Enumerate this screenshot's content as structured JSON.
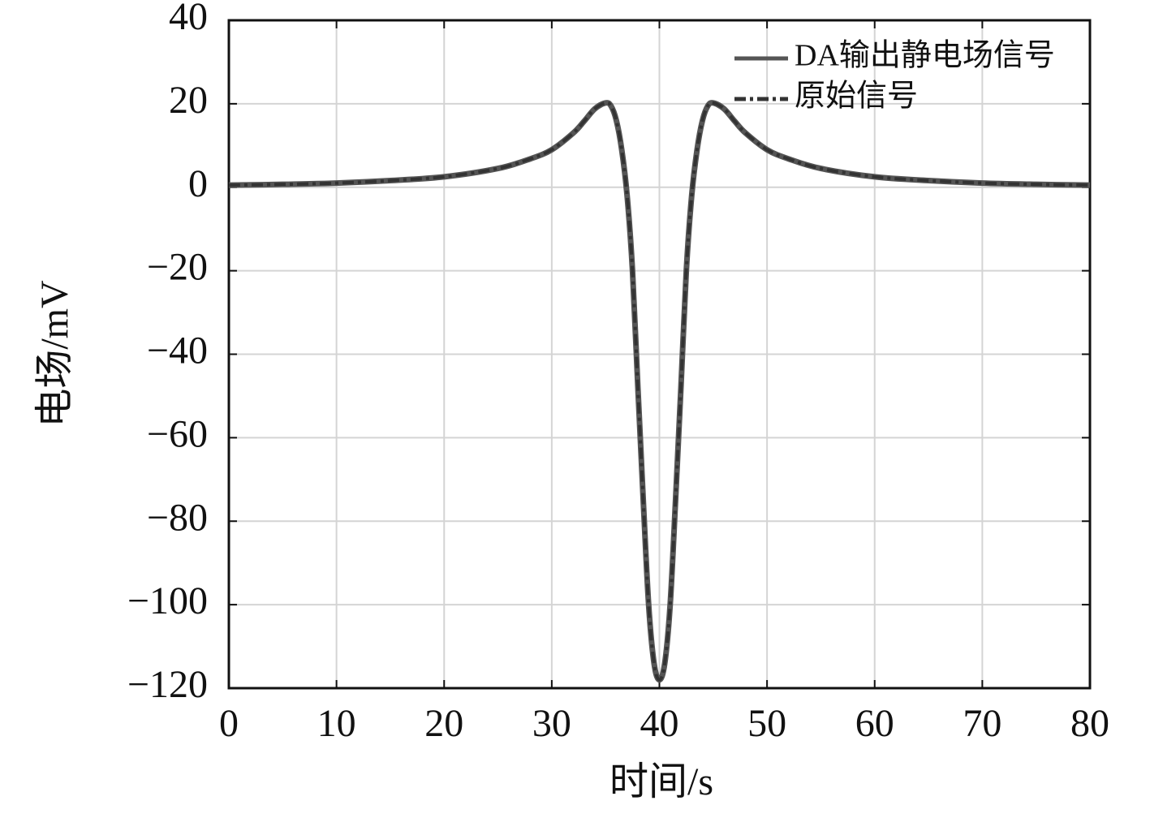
{
  "chart_data": {
    "type": "line",
    "xlabel": "时间/s",
    "ylabel": "电场/mV",
    "x": [
      0,
      5,
      10,
      15,
      20,
      25,
      28,
      30,
      32,
      33,
      34,
      35,
      35.5,
      36,
      36.5,
      37,
      37.5,
      38,
      38.5,
      39,
      39.5,
      40,
      40.5,
      41,
      41.5,
      42,
      42.5,
      43,
      43.5,
      44,
      44.5,
      45,
      46,
      47,
      48,
      50,
      52,
      55,
      60,
      65,
      70,
      75,
      80
    ],
    "series": [
      {
        "name": "DA输出静电场信号",
        "color": "#555555",
        "dash": "solid",
        "values": [
          0.5,
          0.7,
          1,
          1.6,
          2.5,
          4.5,
          6.8,
          9,
          13,
          15.8,
          18.8,
          20.2,
          19.5,
          16,
          9,
          -2,
          -20,
          -48,
          -75,
          -100,
          -114,
          -118,
          -114,
          -100,
          -75,
          -48,
          -20,
          -2,
          9,
          16,
          19.5,
          20.2,
          18.8,
          15.8,
          13,
          9,
          6.8,
          4.5,
          2.5,
          1.6,
          1,
          0.7,
          0.5
        ]
      },
      {
        "name": "原始信号",
        "color": "#333333",
        "dash": "dashdot",
        "values": [
          0.5,
          0.7,
          1,
          1.6,
          2.5,
          4.5,
          6.8,
          9,
          13,
          15.8,
          18.8,
          20.2,
          19.5,
          16,
          9,
          -2,
          -20,
          -48,
          -75,
          -100,
          -114,
          -118,
          -114,
          -100,
          -75,
          -48,
          -20,
          -2,
          9,
          16,
          19.5,
          20.2,
          18.8,
          15.8,
          13,
          9,
          6.8,
          4.5,
          2.5,
          1.6,
          1,
          0.7,
          0.5
        ]
      }
    ],
    "xlim": [
      0,
      80
    ],
    "xticks": [
      0,
      10,
      20,
      30,
      40,
      50,
      60,
      70,
      80
    ],
    "ylim": [
      -120,
      40
    ],
    "yticks": [
      {
        "value": -120,
        "label": "−120"
      },
      {
        "value": -100,
        "label": "−100"
      },
      {
        "value": -80,
        "label": "−80"
      },
      {
        "value": -60,
        "label": "−60"
      },
      {
        "value": -40,
        "label": "−40"
      },
      {
        "value": -20,
        "label": "−20"
      },
      0,
      20,
      40
    ],
    "grid": true,
    "legend": "upper right"
  }
}
